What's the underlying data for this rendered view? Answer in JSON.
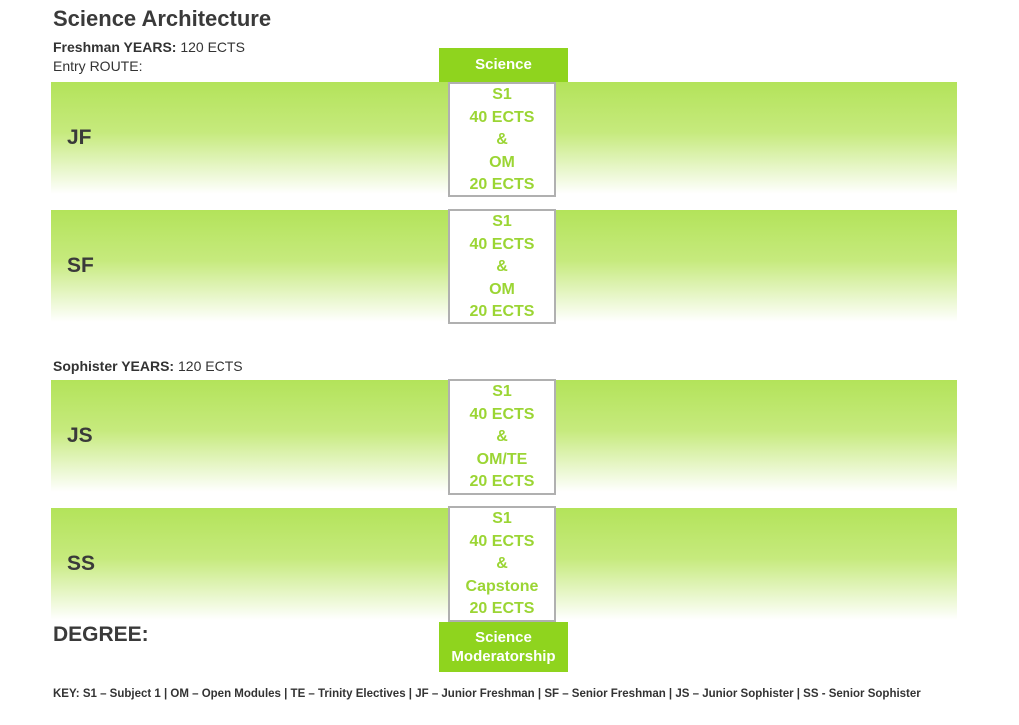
{
  "title": "Science Architecture",
  "freshman": {
    "label": "Freshman YEARS:",
    "value": " 120 ECTS"
  },
  "entry_route": "Entry ROUTE:",
  "science_tab": "Science",
  "sophister": {
    "label": "Sophister YEARS:",
    "value": " 120 ECTS"
  },
  "years": [
    {
      "code": "JF",
      "lines": [
        "S1",
        "40 ECTS",
        "&",
        "OM",
        "20 ECTS"
      ]
    },
    {
      "code": "SF",
      "lines": [
        "S1",
        "40 ECTS",
        "&",
        "OM",
        "20 ECTS"
      ]
    },
    {
      "code": "JS",
      "lines": [
        "S1",
        "40 ECTS",
        "&",
        "OM/TE",
        "20 ECTS"
      ]
    },
    {
      "code": "SS",
      "lines": [
        "S1",
        "40 ECTS",
        "&",
        "Capstone",
        "20 ECTS"
      ]
    }
  ],
  "degree_label": "DEGREE:",
  "degree_tab": {
    "line1": "Science",
    "line2": "Moderatorship"
  },
  "key": "KEY: S1 – Subject 1 | OM – Open Modules |  TE – Trinity Electives | JF – Junior Freshman | SF – Senior Freshman | JS – Junior Sophister | SS - Senior Sophister",
  "colors": {
    "accent": "#8fd41e",
    "band": "#b3e35a",
    "box_text": "#9bd534"
  }
}
